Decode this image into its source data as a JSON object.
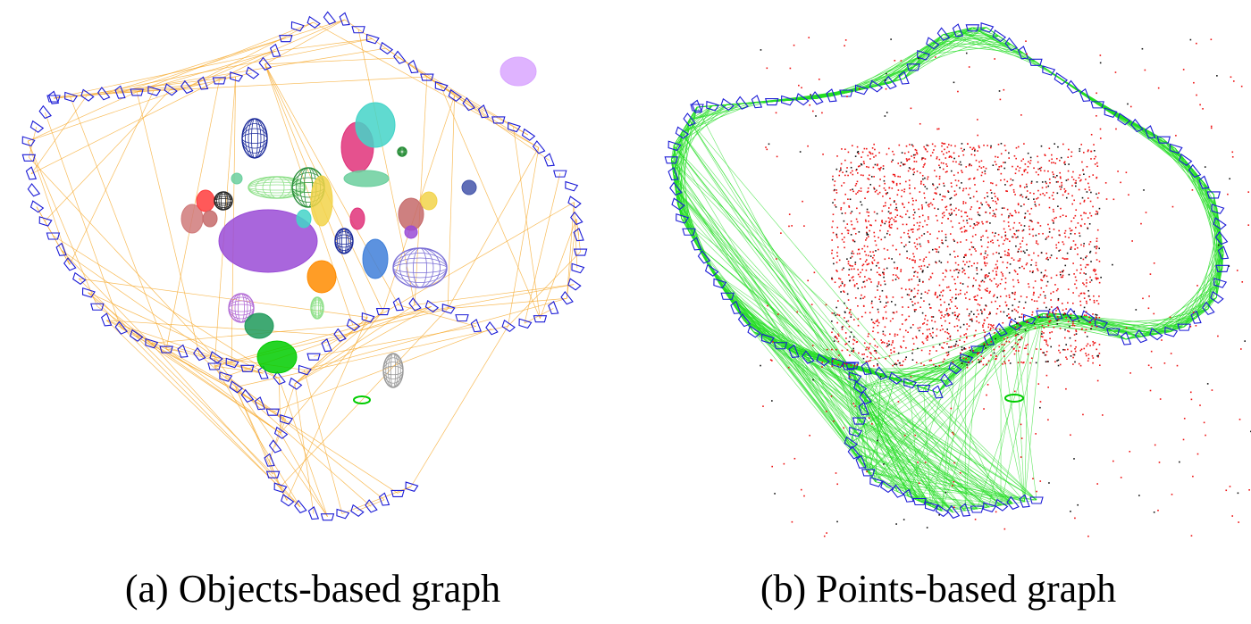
{
  "figure": {
    "panels": [
      {
        "id": "a",
        "caption": "(a) Objects-based graph",
        "edge_color": "#f5a623",
        "keyframe_color": "#1c1cd6"
      },
      {
        "id": "b",
        "caption": "(b) Points-based graph",
        "edge_color": "#22dd22",
        "keyframe_color": "#1c1cd6",
        "point_colors": [
          "#ee1111",
          "#111111"
        ]
      }
    ],
    "object_colors": [
      "#1b2a9a",
      "#e0327a",
      "#44d3c8",
      "#8fe08a",
      "#6bcf9e",
      "#9a4bd6",
      "#2a8f3a",
      "#f2d34a",
      "#c56a6a",
      "#7b6fd6",
      "#3f7fd9",
      "#ff8c00",
      "#b46ed6",
      "#1f9a5a",
      "#00cc00",
      "#999999",
      "#d07a7a",
      "#ff3c3c",
      "#222222",
      "#d9a6ff",
      "#4455aa"
    ]
  }
}
